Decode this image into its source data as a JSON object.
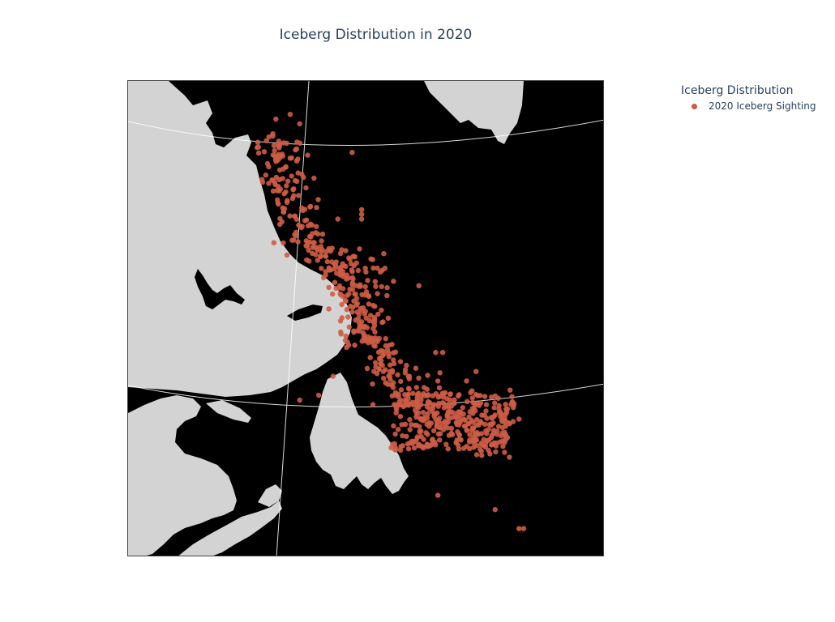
{
  "title": "Iceberg Distribution in 2020",
  "legend": {
    "title": "Iceberg Distribution",
    "items": [
      {
        "label": "2020 Iceberg Sighting",
        "color": "#cd5c45"
      }
    ]
  },
  "colors": {
    "land": "#d3d3d3",
    "water": "#000000",
    "graticule": "#ffffff",
    "marker": "#cd5c45"
  },
  "chart_data": {
    "type": "scatter",
    "projection": "conic",
    "series": [
      {
        "name": "2020 Iceberg Sighting",
        "clusters": [
          {
            "x0": 0.27,
            "y0": 0.11,
            "x1": 0.41,
            "y1": 0.4,
            "n": 520
          },
          {
            "x0": 0.41,
            "y0": 0.35,
            "x1": 0.56,
            "y1": 0.56,
            "n": 600
          },
          {
            "x0": 0.5,
            "y0": 0.54,
            "x1": 0.8,
            "y1": 0.8,
            "n": 520
          }
        ],
        "outliers": [
          [
            0.34,
            0.07
          ],
          [
            0.31,
            0.08
          ],
          [
            0.36,
            0.09
          ],
          [
            0.47,
            0.15
          ],
          [
            0.49,
            0.27
          ],
          [
            0.49,
            0.28
          ],
          [
            0.49,
            0.29
          ],
          [
            0.44,
            0.29
          ],
          [
            0.61,
            0.43
          ],
          [
            0.66,
            0.57
          ],
          [
            0.71,
            0.63
          ],
          [
            0.82,
            0.71
          ],
          [
            0.8,
            0.79
          ],
          [
            0.77,
            0.9
          ],
          [
            0.82,
            0.94
          ],
          [
            0.83,
            0.94
          ],
          [
            0.65,
            0.87
          ],
          [
            0.36,
            0.67
          ],
          [
            0.4,
            0.66
          ],
          [
            0.43,
            0.62
          ],
          [
            0.73,
            0.61
          ],
          [
            0.59,
            0.62
          ]
        ]
      }
    ]
  }
}
